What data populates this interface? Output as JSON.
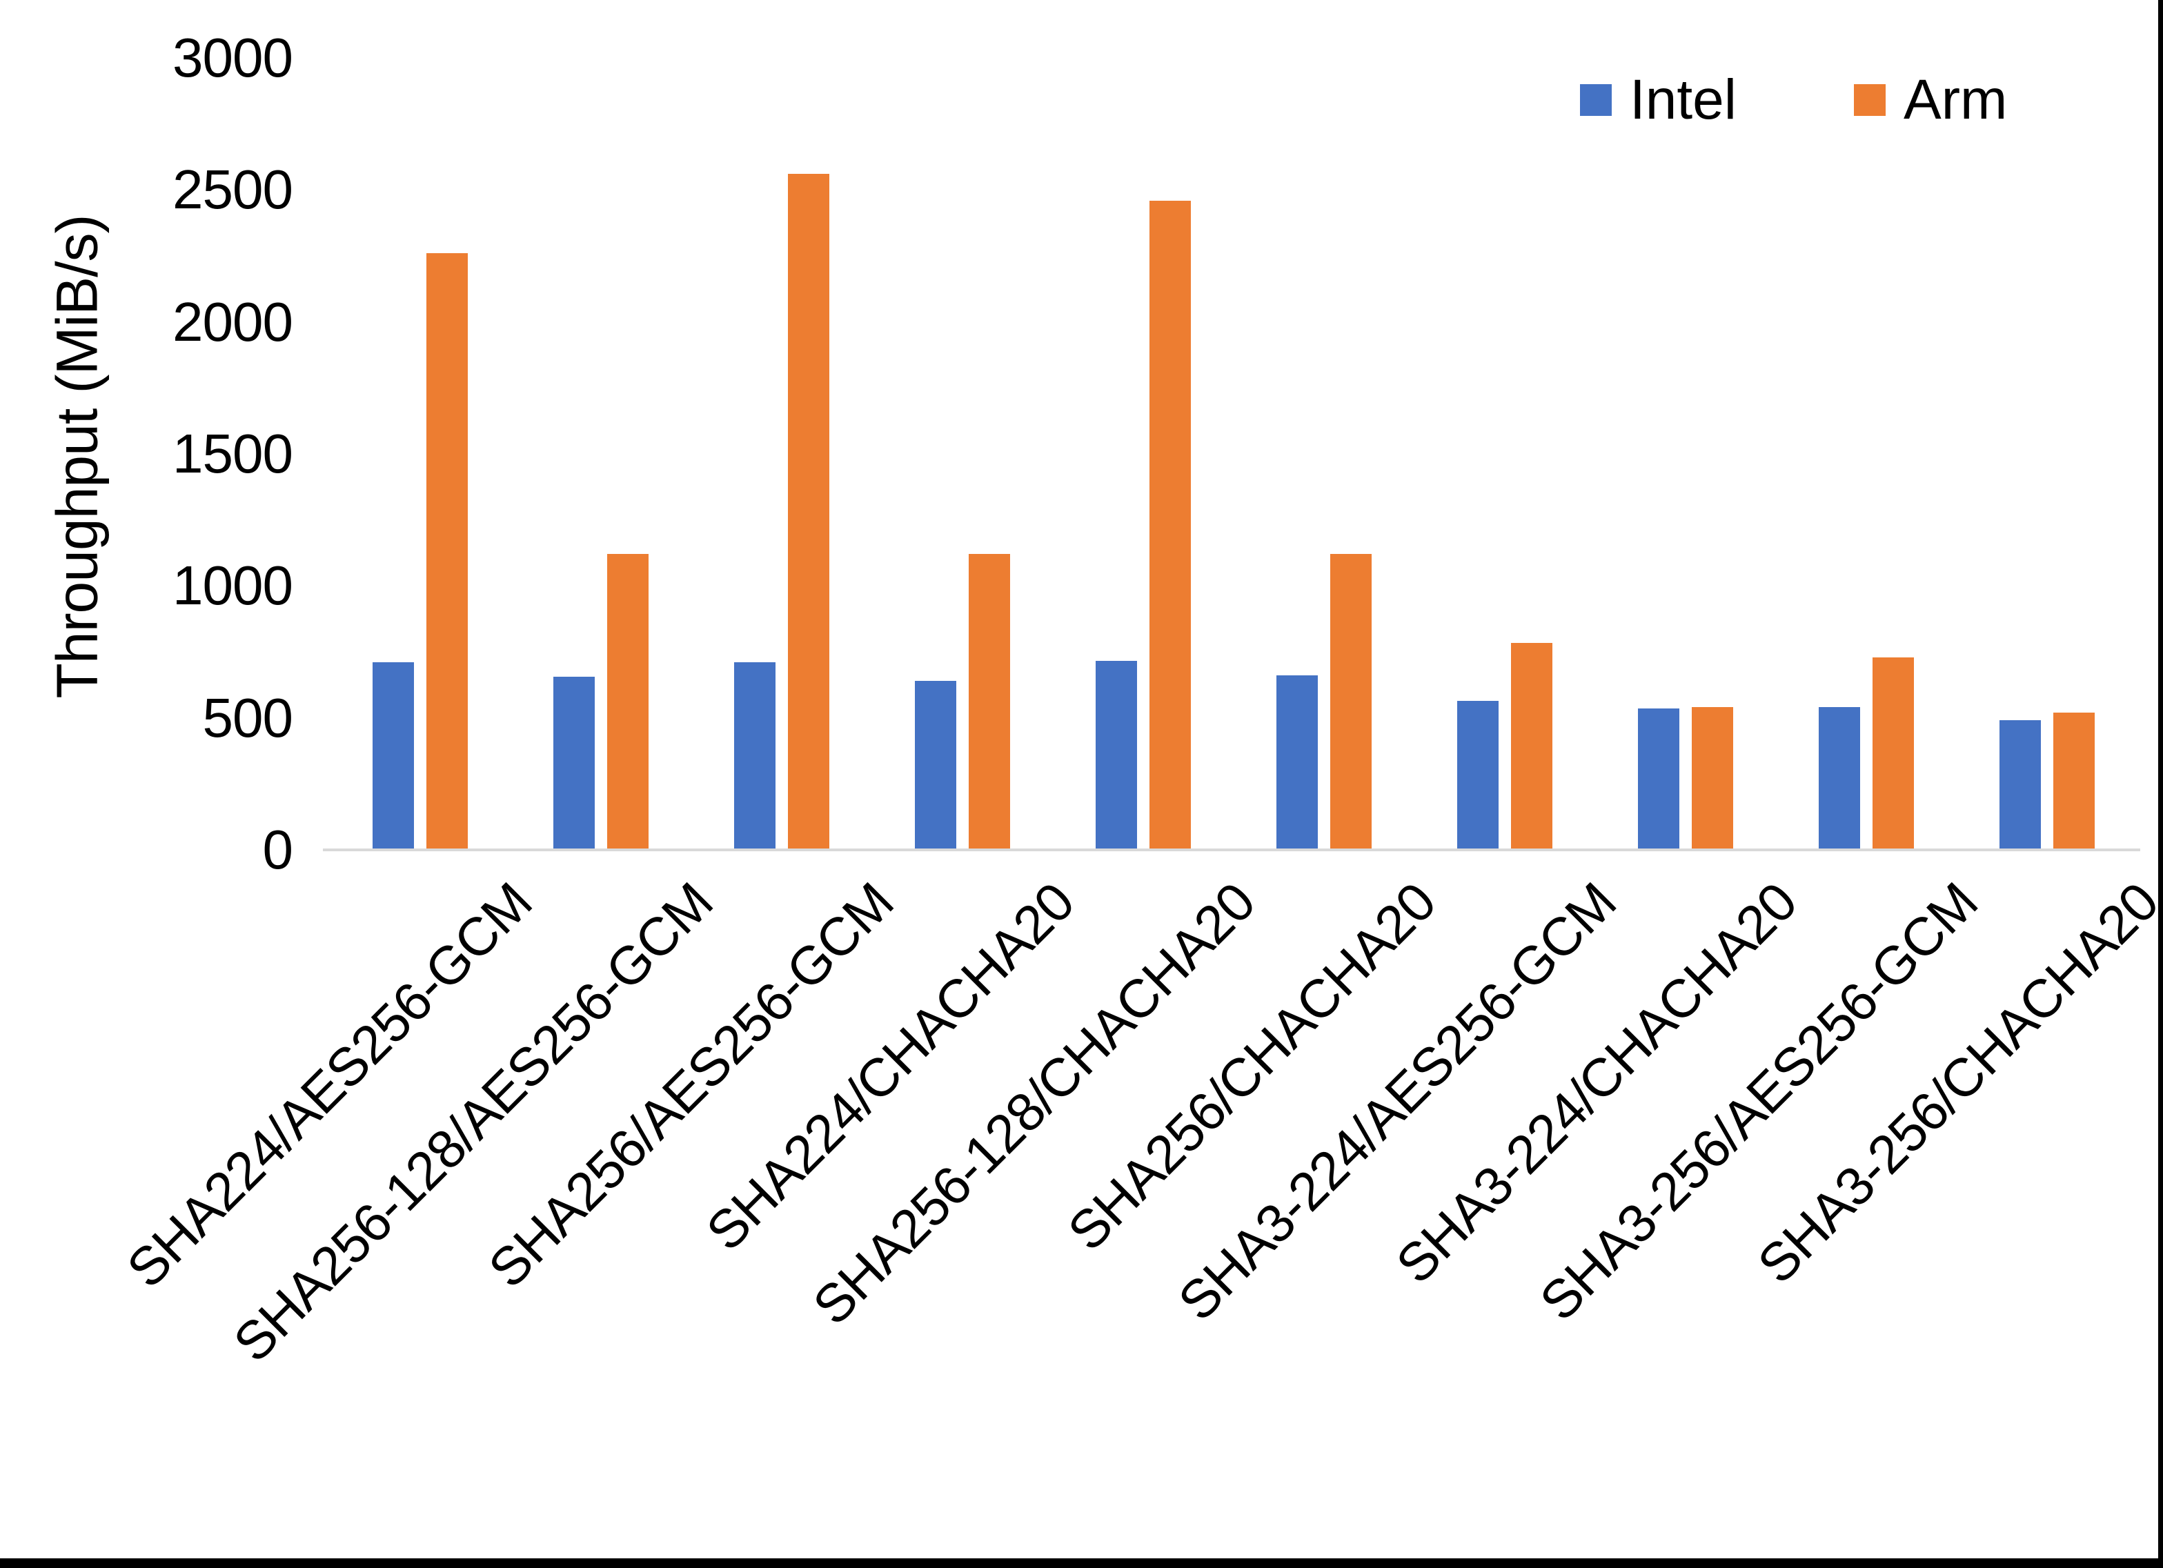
{
  "chart_data": {
    "type": "bar",
    "title": "",
    "xlabel": "",
    "ylabel": "Throughput (MiB/s)",
    "ylim": [
      0,
      3000
    ],
    "ytick_step": 500,
    "yticks": [
      "0",
      "500",
      "1000",
      "1500",
      "2000",
      "2500",
      "3000"
    ],
    "grid": false,
    "legend_position": "top-right",
    "axis_line_color": "#d9d9d9",
    "text_color": "#000000",
    "categories": [
      "SHA224/AES256-GCM",
      "SHA256-128/AES256-GCM",
      "SHA256/AES256-GCM",
      "SHA224/CHACHA20",
      "SHA256-128/CHACHA20",
      "SHA256/CHACHA20",
      "SHA3-224/AES256-GCM",
      "SHA3-224/CHACHA20",
      "SHA3-256/AES256-GCM",
      "SHA3-256/CHACHA20"
    ],
    "series": [
      {
        "name": "Intel",
        "color": "#4472C4",
        "values": [
          710,
          655,
          710,
          640,
          715,
          660,
          565,
          535,
          540,
          490
        ]
      },
      {
        "name": "Arm",
        "color": "#ED7D31",
        "values": [
          2260,
          1120,
          2560,
          1120,
          2460,
          1120,
          785,
          540,
          730,
          520
        ]
      }
    ]
  }
}
